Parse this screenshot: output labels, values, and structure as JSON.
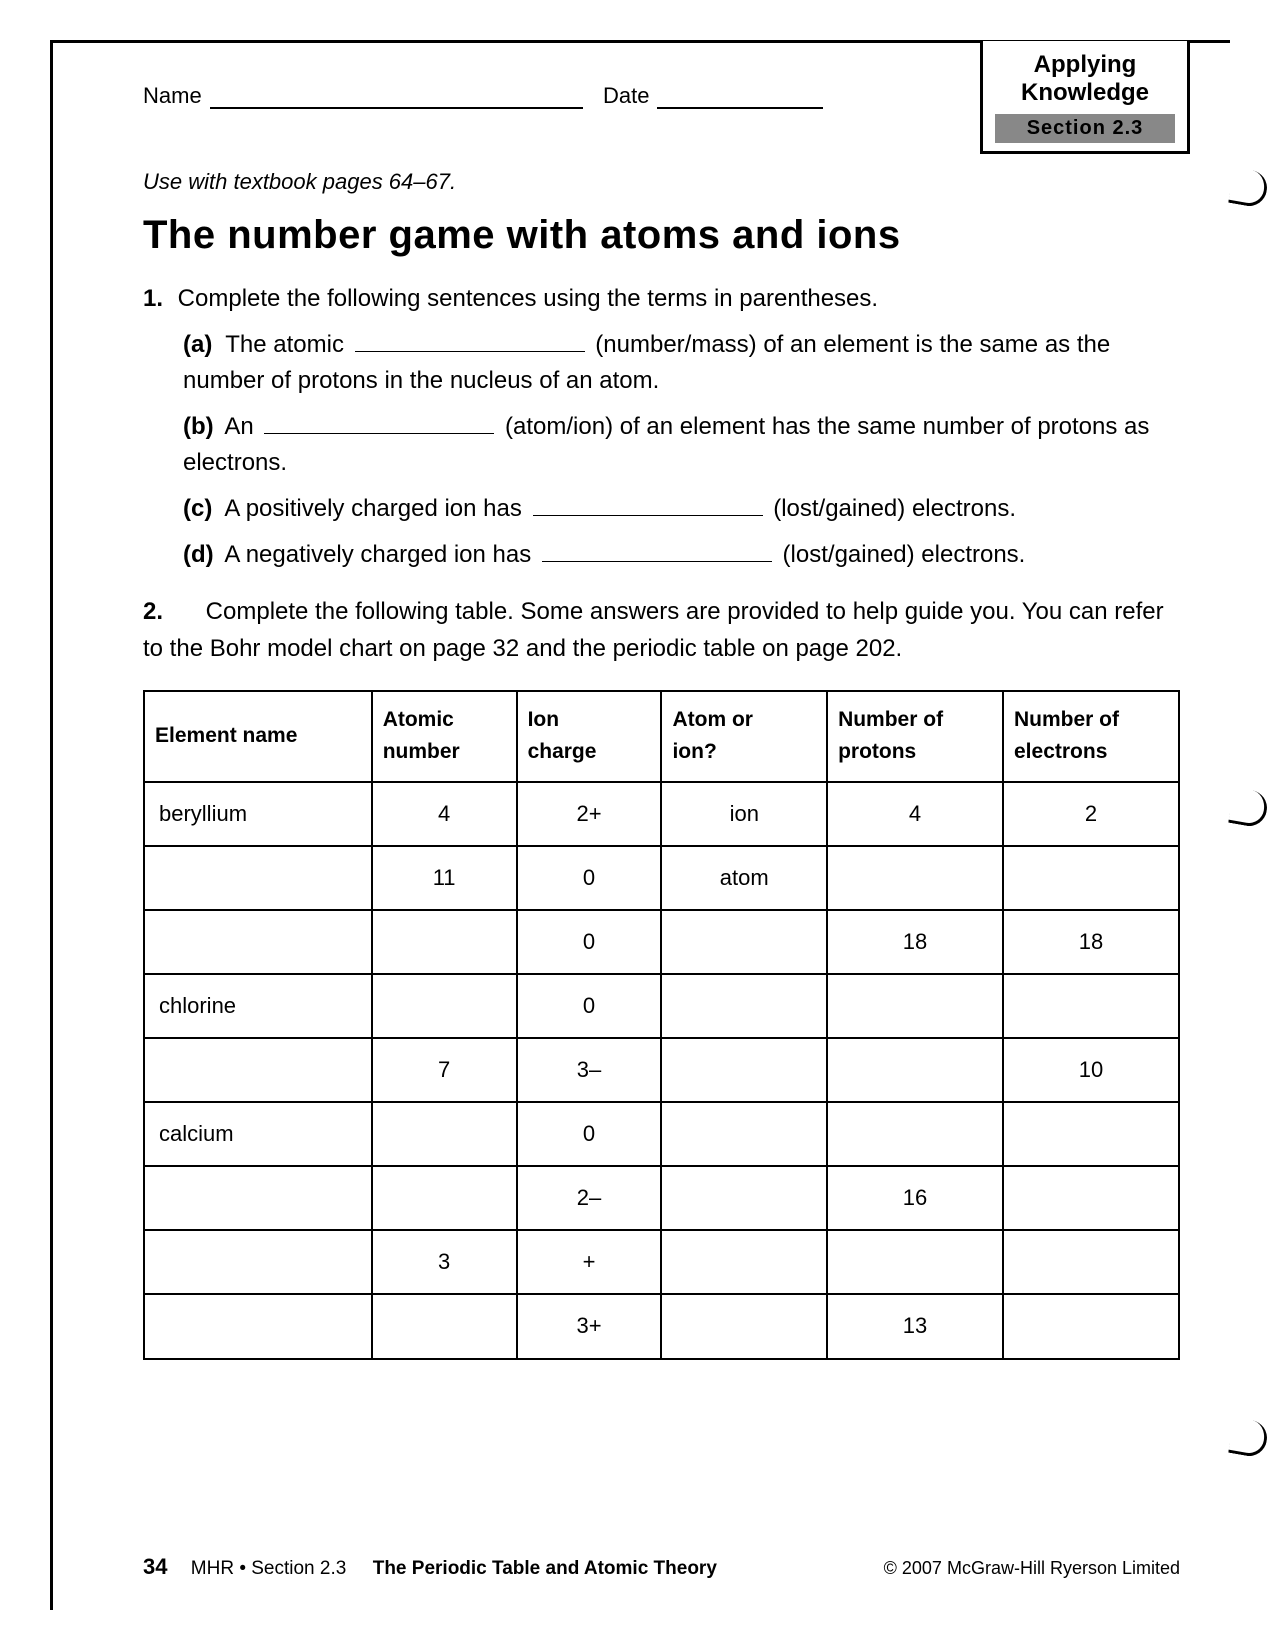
{
  "header": {
    "name_label": "Name",
    "date_label": "Date",
    "badge_line1": "Applying",
    "badge_line2": "Knowledge",
    "badge_section": "Section 2.3"
  },
  "instruction": "Use with textbook pages 64–67.",
  "title": "The number game with atoms and ions",
  "q1": {
    "num": "1.",
    "prompt": "Complete the following sentences using the terms in parentheses.",
    "items": [
      {
        "label": "(a)",
        "pre": "The atomic ",
        "post1": " (number/mass) of an element is the same as the number of protons in the nucleus of an atom."
      },
      {
        "label": "(b)",
        "pre": "An ",
        "post1": " (atom/ion) of an element has the same number of protons as electrons."
      },
      {
        "label": "(c)",
        "pre": "A positively charged ion has ",
        "post1": " (lost/gained) electrons."
      },
      {
        "label": "(d)",
        "pre": "A negatively charged ion has ",
        "post1": " (lost/gained) electrons."
      }
    ]
  },
  "q2": {
    "num": "2.",
    "prompt": "Complete the following table. Some answers are provided to help guide you. You can refer to the Bohr model chart on page 32 and the periodic table on page 202."
  },
  "table": {
    "columns": [
      "Element name",
      "Atomic number",
      "Ion charge",
      "Atom or ion?",
      "Number of protons",
      "Number of electrons"
    ],
    "col_widths": [
      "22%",
      "14%",
      "14%",
      "16%",
      "17%",
      "17%"
    ],
    "rows": [
      [
        "beryllium",
        "4",
        "2+",
        "ion",
        "4",
        "2"
      ],
      [
        "",
        "11",
        "0",
        "atom",
        "",
        ""
      ],
      [
        "",
        "",
        "0",
        "",
        "18",
        "18"
      ],
      [
        "chlorine",
        "",
        "0",
        "",
        "",
        ""
      ],
      [
        "",
        "7",
        "3–",
        "",
        "",
        "10"
      ],
      [
        "calcium",
        "",
        "0",
        "",
        "",
        ""
      ],
      [
        "",
        "",
        "2–",
        "",
        "16",
        ""
      ],
      [
        "",
        "3",
        "+",
        "",
        "",
        ""
      ],
      [
        "",
        "",
        "3+",
        "",
        "13",
        ""
      ]
    ]
  },
  "footer": {
    "page": "34",
    "section_prefix": "MHR • Section 2.3",
    "section_title": "The Periodic Table and Atomic Theory",
    "copyright": "© 2007 McGraw-Hill Ryerson Limited"
  }
}
